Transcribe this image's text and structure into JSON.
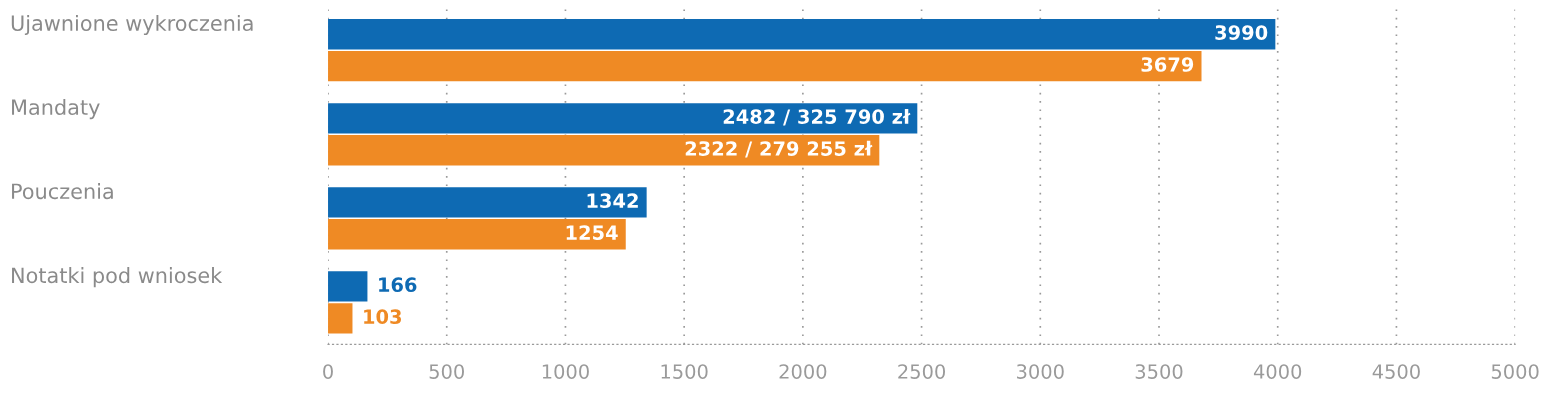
{
  "chart_data": {
    "type": "bar",
    "orientation": "horizontal",
    "categories": [
      "Ujawnione wykroczenia",
      "Mandaty",
      "Pouczenia",
      "Notatki pod wniosek"
    ],
    "series": [
      {
        "color": "#0e6ab3",
        "values": [
          3990,
          2482,
          1342,
          166
        ],
        "value_labels": [
          "3990",
          "2482 / 325 790 zł",
          "1342",
          "166"
        ]
      },
      {
        "color": "#ef8a24",
        "values": [
          3679,
          2322,
          1254,
          103
        ],
        "value_labels": [
          "3679",
          "2322 / 279 255 zł",
          "1254",
          "103"
        ]
      }
    ],
    "xlim": [
      0,
      5000
    ],
    "xticks": [
      0,
      500,
      1000,
      1500,
      2000,
      2500,
      3000,
      3500,
      4000,
      4500,
      5000
    ],
    "grid": "x",
    "legend": false
  }
}
